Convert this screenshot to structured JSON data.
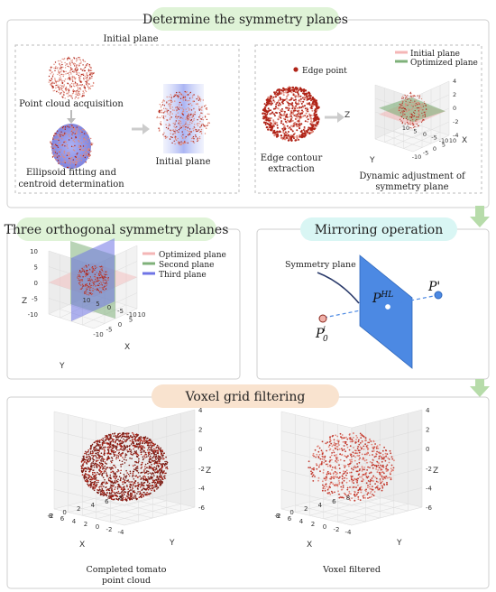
{
  "sections": {
    "top_title": "Determine the symmetry planes",
    "orth_title": "Three orthogonal symmetry planes",
    "mirror_title": "Mirroring operation",
    "voxel_title": "Voxel grid filtering"
  },
  "top_left": {
    "initial_plane_header": "Initial plane",
    "point_cloud_caption": "Point cloud acquisition",
    "ellipsoid_caption_1": "Ellipsoid fitting and",
    "ellipsoid_caption_2": "centroid determination",
    "initial_plane_caption": "Initial plane"
  },
  "top_right": {
    "edge_point_legend": "Edge point",
    "edge_caption_1": "Edge contour",
    "edge_caption_2": "extraction",
    "legend_initial": "Initial plane",
    "legend_optimized": "Optimized plane",
    "dyn_caption_1": "Dynamic adjustment of",
    "dyn_caption_2": "symmetry plane",
    "z_label": "Z",
    "y_label": "Y",
    "x_label": "X",
    "z_ticks": [
      "4",
      "2",
      "0",
      "-2",
      "-4"
    ],
    "y_ticks": [
      "-10",
      "-5",
      "0",
      "5",
      "10"
    ],
    "x_ticks": [
      "-10",
      "-5",
      "0",
      "5",
      "10"
    ]
  },
  "orth": {
    "legend_optimized": "Optimized plane",
    "legend_second": "Second plane",
    "legend_third": "Third plane",
    "z_label": "Z",
    "y_label": "Y",
    "x_label": "X",
    "z_ticks": [
      "10",
      "5",
      "0",
      "-5",
      "-10"
    ],
    "y_ticks": [
      "-10",
      "-5",
      "0",
      "5",
      "10"
    ],
    "x_ticks": [
      "-10",
      "-5",
      "0",
      "5",
      "10"
    ]
  },
  "mirror": {
    "symmetry_plane": "Symmetry plane",
    "p_hl": "P",
    "p_hl_sup": "HL",
    "p_prime": "P'",
    "p0": "P",
    "p0_sup": "i",
    "p0_sub": "0"
  },
  "voxel": {
    "left_caption_1": "Completed tomato",
    "left_caption_2": "point cloud",
    "right_caption": "Voxel filtered",
    "z_label": "Z",
    "y_label": "Y",
    "x_label": "X",
    "z_ticks": [
      "4",
      "2",
      "0",
      "-2",
      "-4",
      "-6"
    ],
    "x_ticks": [
      "-4",
      "-2",
      "0",
      "2",
      "4",
      "6",
      "8"
    ],
    "y_ticks": [
      "-2",
      "0",
      "2",
      "4",
      "6",
      "8"
    ]
  },
  "colors": {
    "title_bg_green": "#dff3d7",
    "title_bg_cyan": "#d9f6f4",
    "title_bg_peach": "#f9e3cf",
    "point_red": "#b02418",
    "plane_pink": "#f4b6b6",
    "plane_green": "#7fb17a",
    "plane_blue": "#6f74e6",
    "mirror_plane": "#4c89e3",
    "arrow_green": "#b7dcaa"
  }
}
